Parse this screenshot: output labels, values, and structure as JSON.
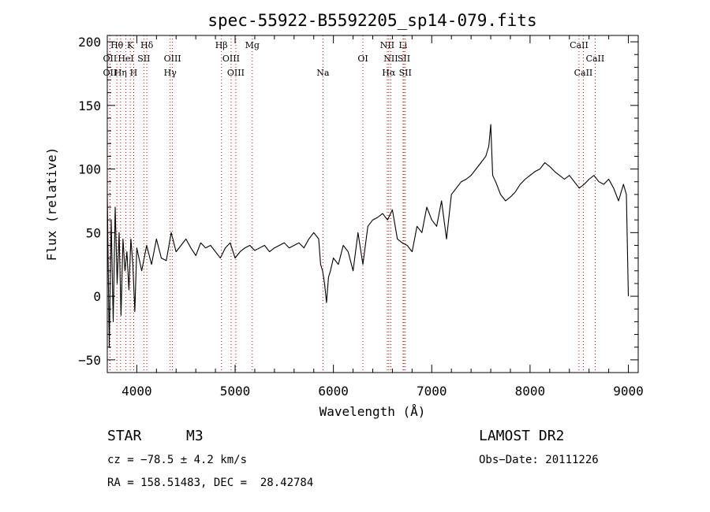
{
  "chart_data": {
    "type": "line",
    "title": "spec-55922-B5592205_sp14-079.fits",
    "xlabel": "Wavelength (Å)",
    "ylabel": "Flux (relative)",
    "xlim": [
      3700,
      9100
    ],
    "ylim": [
      -60,
      205
    ],
    "x_ticks": [
      4000,
      5000,
      6000,
      7000,
      8000,
      9000
    ],
    "y_ticks": [
      -50,
      0,
      50,
      100,
      150,
      200
    ],
    "x_tick_labels": [
      "4000",
      "5000",
      "6000",
      "7000",
      "8000",
      "9000"
    ],
    "y_tick_labels": [
      "−50",
      "0",
      "50",
      "100",
      "150",
      "200"
    ],
    "series": [
      {
        "x": [
          3700,
          3720,
          3740,
          3760,
          3780,
          3800,
          3820,
          3840,
          3860,
          3880,
          3900,
          3920,
          3940,
          3960,
          3980,
          4000,
          4050,
          4100,
          4150,
          4200,
          4250,
          4300,
          4350,
          4400,
          4450,
          4500,
          4550,
          4600,
          4650,
          4700,
          4750,
          4800,
          4850,
          4900,
          4950,
          5000,
          5050,
          5100,
          5150,
          5200,
          5250,
          5300,
          5350,
          5400,
          5450,
          5500,
          5550,
          5600,
          5650,
          5700,
          5750,
          5800,
          5850,
          5870,
          5890,
          5910,
          5930,
          5950,
          5970,
          6000,
          6050,
          6100,
          6150,
          6200,
          6250,
          6300,
          6350,
          6400,
          6450,
          6500,
          6550,
          6600,
          6650,
          6700,
          6750,
          6800,
          6850,
          6900,
          6950,
          7000,
          7050,
          7100,
          7150,
          7200,
          7250,
          7300,
          7350,
          7400,
          7450,
          7500,
          7550,
          7580,
          7600,
          7620,
          7650,
          7700,
          7750,
          7800,
          7850,
          7900,
          7950,
          8000,
          8050,
          8100,
          8150,
          8200,
          8250,
          8300,
          8350,
          8400,
          8450,
          8500,
          8550,
          8600,
          8650,
          8700,
          8750,
          8800,
          8850,
          8900,
          8950,
          8980,
          9000
        ],
        "y": [
          80,
          -40,
          60,
          -20,
          70,
          10,
          50,
          -15,
          45,
          20,
          35,
          5,
          45,
          25,
          -12,
          38,
          20,
          40,
          25,
          45,
          30,
          28,
          50,
          35,
          40,
          45,
          38,
          32,
          42,
          38,
          40,
          35,
          30,
          38,
          42,
          30,
          35,
          38,
          40,
          36,
          38,
          40,
          35,
          38,
          40,
          42,
          38,
          40,
          42,
          38,
          45,
          50,
          45,
          25,
          20,
          10,
          -5,
          15,
          20,
          30,
          25,
          40,
          35,
          20,
          50,
          25,
          55,
          60,
          62,
          65,
          60,
          68,
          45,
          42,
          40,
          35,
          55,
          50,
          70,
          60,
          55,
          75,
          45,
          80,
          85,
          90,
          92,
          95,
          100,
          105,
          110,
          118,
          135,
          95,
          90,
          80,
          75,
          78,
          82,
          88,
          92,
          95,
          98,
          100,
          105,
          102,
          98,
          95,
          92,
          95,
          90,
          85,
          88,
          92,
          95,
          90,
          88,
          92,
          85,
          75,
          88,
          80,
          0
        ]
      }
    ],
    "lines": [
      {
        "label": "Hθ",
        "wave": 3798,
        "row": 0
      },
      {
        "label": "K",
        "wave": 3934,
        "row": 0
      },
      {
        "label": "Hδ",
        "wave": 4102,
        "row": 0
      },
      {
        "label": "Hβ",
        "wave": 4861,
        "row": 0
      },
      {
        "label": "Mg",
        "wave": 5175,
        "row": 0
      },
      {
        "label": "NII",
        "wave": 6548,
        "row": 0
      },
      {
        "label": "Li",
        "wave": 6708,
        "row": 0
      },
      {
        "label": "CaII",
        "wave": 8498,
        "row": 0
      },
      {
        "label": "OII",
        "wave": 3727,
        "row": 1
      },
      {
        "label": "HeI",
        "wave": 3889,
        "row": 1
      },
      {
        "label": "SII",
        "wave": 4072,
        "row": 1
      },
      {
        "label": "OIII",
        "wave": 4363,
        "row": 1
      },
      {
        "label": "OIII",
        "wave": 4959,
        "row": 1
      },
      {
        "label": "OI",
        "wave": 6300,
        "row": 1
      },
      {
        "label": "NII",
        "wave": 6584,
        "row": 1
      },
      {
        "label": "SII",
        "wave": 6717,
        "row": 1
      },
      {
        "label": "CaII",
        "wave": 8662,
        "row": 1
      },
      {
        "label": "OII",
        "wave": 3727,
        "row": 2
      },
      {
        "label": "Hη",
        "wave": 3835,
        "row": 2
      },
      {
        "label": "H",
        "wave": 3968,
        "row": 2
      },
      {
        "label": "Hγ",
        "wave": 4340,
        "row": 2
      },
      {
        "label": "OIII",
        "wave": 5007,
        "row": 2
      },
      {
        "label": "Na",
        "wave": 5893,
        "row": 2
      },
      {
        "label": "Hα",
        "wave": 6563,
        "row": 2
      },
      {
        "label": "SII",
        "wave": 6731,
        "row": 2
      },
      {
        "label": "CaII",
        "wave": 8542,
        "row": 2
      }
    ],
    "line_color": "#cc0000",
    "grid": false,
    "legend": "none"
  },
  "info": {
    "object_class": "STAR",
    "subclass": "M3",
    "survey": "LAMOST DR2",
    "redshift": "cz = −78.5 ± 4.2 km/s",
    "obs_date": "Obs−Date: 20111226",
    "coordinates": "RA = 158.51483, DEC =  28.42784"
  }
}
